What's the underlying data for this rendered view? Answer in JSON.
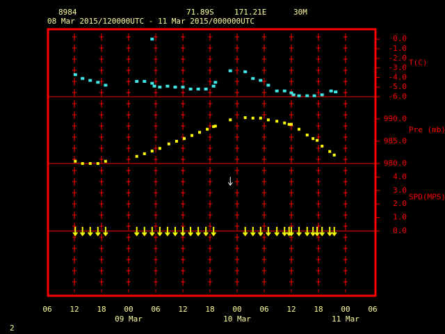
{
  "header": {
    "station": "8984",
    "lat": "71.89S",
    "lon": "171.21E",
    "interval": "30M",
    "range": "08 Mar 2015/120000UTC - 11 Mar 2015/000000UTC",
    "corner": "2"
  },
  "chart_data": [
    {
      "type": "scatter",
      "series": [
        {
          "name": "T(C)",
          "color": "#40e8e8",
          "x": [
            12.2,
            13.8,
            15.5,
            17.2,
            18.9,
            25.8,
            27.5,
            29.2,
            29.2,
            29.7,
            30.9,
            32.6,
            34.3,
            36.0,
            37.7,
            39.4,
            41.1,
            42.8,
            43.2,
            46.5,
            49.8,
            51.5,
            53.2,
            54.9,
            56.8,
            58.5,
            60.0,
            60.5,
            61.7,
            63.5,
            65.1,
            66.8,
            68.8,
            69.8
          ],
          "values": [
            -3.7,
            -4.1,
            -4.3,
            -4.5,
            -4.8,
            -4.4,
            -4.4,
            0.0,
            -4.6,
            -4.9,
            -5.0,
            -4.9,
            -5.0,
            -5.0,
            -5.2,
            -5.2,
            -5.2,
            -4.9,
            -4.5,
            -3.3,
            -3.4,
            -4.1,
            -4.3,
            -4.8,
            -5.4,
            -5.4,
            -5.6,
            -5.8,
            -5.9,
            -5.9,
            -5.9,
            -5.8,
            -5.4,
            -5.5
          ]
        }
      ],
      "ylim": [
        -6,
        1.1
      ],
      "yticks": [
        {
          "value": 0,
          "label": "0.0"
        },
        {
          "value": -1,
          "label": "-1.0"
        },
        {
          "value": -2,
          "label": "-2.0"
        },
        {
          "value": -3,
          "label": "-3.0"
        },
        {
          "value": -4,
          "label": "-4.0"
        },
        {
          "value": -5,
          "label": "-5.0"
        },
        {
          "value": -6,
          "label": "-6.0"
        }
      ]
    },
    {
      "type": "scatter",
      "series": [
        {
          "name": "Pre (mb)",
          "color": "#ffff00",
          "x": [
            12.2,
            13.8,
            15.5,
            17.2,
            18.9,
            25.8,
            27.5,
            29.2,
            30.9,
            32.9,
            34.6,
            36.3,
            38.0,
            39.7,
            41.4,
            42.8,
            43.2,
            46.5,
            49.8,
            51.5,
            53.2,
            54.9,
            56.8,
            58.5,
            59.5,
            60.0,
            61.7,
            63.5,
            64.8,
            65.7,
            66.8,
            68.5,
            69.5
          ],
          "values": [
            980.5,
            980.0,
            980.0,
            980.0,
            980.5,
            981.6,
            982.2,
            982.8,
            983.4,
            984.4,
            985.0,
            985.6,
            986.3,
            987.0,
            987.7,
            988.3,
            988.4,
            989.8,
            990.3,
            990.2,
            990.2,
            989.8,
            989.5,
            989.1,
            988.8,
            988.8,
            987.7,
            986.4,
            985.6,
            985.2,
            983.9,
            982.7,
            981.9
          ]
        }
      ],
      "ylim": [
        980,
        995
      ],
      "yticks": [
        {
          "value": 990,
          "label": "990.0"
        },
        {
          "value": 985,
          "label": "985.0"
        },
        {
          "value": 980,
          "label": "980.0"
        }
      ]
    },
    {
      "type": "wind",
      "series": [
        {
          "name": "SPD(MPS)",
          "color": "#ffff00",
          "x": [
            12.2,
            13.8,
            15.5,
            17.2,
            18.9,
            25.8,
            27.5,
            29.2,
            30.9,
            32.6,
            34.3,
            36.0,
            37.7,
            39.4,
            41.1,
            42.8,
            46.5,
            49.8,
            51.5,
            53.2,
            54.9,
            56.8,
            58.5,
            59.5,
            60.0,
            61.7,
            63.5,
            64.8,
            65.7,
            66.8,
            68.5,
            69.5
          ],
          "values": [
            0,
            0,
            0,
            0,
            0,
            0,
            0,
            0,
            0,
            0,
            0,
            0,
            0,
            0,
            0,
            0,
            3.7,
            0,
            0,
            0,
            0,
            0,
            0,
            0,
            0,
            0,
            0,
            0,
            0,
            0,
            0,
            0
          ]
        }
      ],
      "ylim": [
        0,
        5
      ],
      "yticks": [
        {
          "value": 4,
          "label": "4.0"
        },
        {
          "value": 3,
          "label": "3.0"
        },
        {
          "value": 2,
          "label": "2.0"
        },
        {
          "value": 1,
          "label": "1.0"
        },
        {
          "value": 0,
          "label": "0.0"
        }
      ],
      "xlim": [
        6,
        78
      ],
      "xticks": [
        {
          "value": 6,
          "label": "06"
        },
        {
          "value": 12,
          "label": "12"
        },
        {
          "value": 18,
          "label": "18"
        },
        {
          "value": 24,
          "label": "00"
        },
        {
          "value": 30,
          "label": "06"
        },
        {
          "value": 36,
          "label": "12"
        },
        {
          "value": 42,
          "label": "18"
        },
        {
          "value": 48,
          "label": "00"
        },
        {
          "value": 54,
          "label": "06"
        },
        {
          "value": 60,
          "label": "12"
        },
        {
          "value": 66,
          "label": "18"
        },
        {
          "value": 72,
          "label": "00"
        },
        {
          "value": 78,
          "label": "06"
        }
      ],
      "day_labels": [
        {
          "value": 24,
          "label": "09 Mar"
        },
        {
          "value": 48,
          "label": "10 Mar"
        },
        {
          "value": 72,
          "label": "11 Mar"
        }
      ]
    }
  ]
}
